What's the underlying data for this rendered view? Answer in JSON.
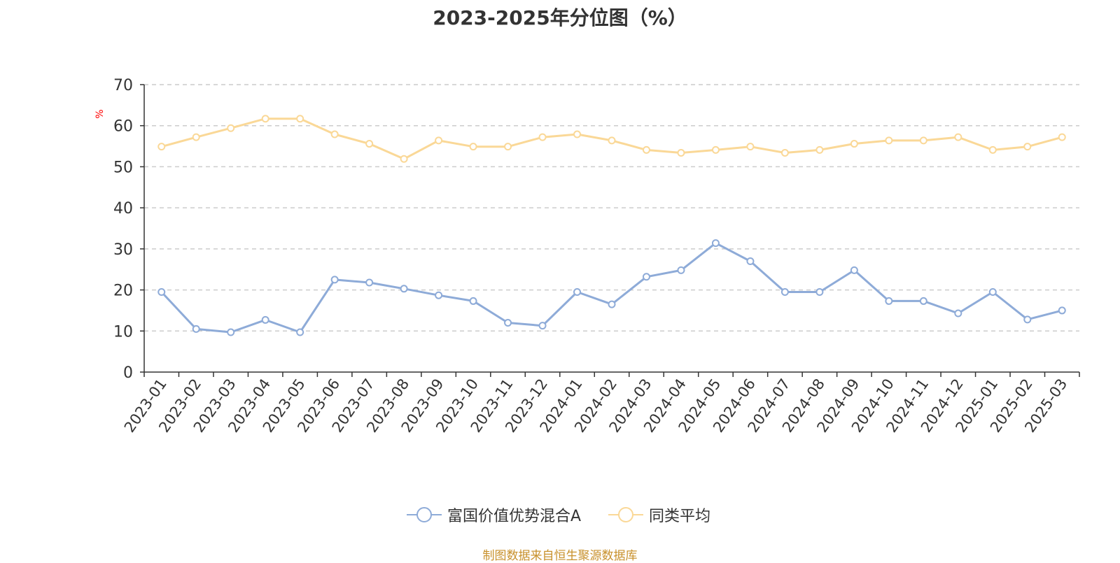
{
  "title": "2023-2025年分位图（%）",
  "source": "制图数据来自恒生聚源数据库",
  "chart_data": {
    "type": "line",
    "ylabel": "%",
    "ylim": [
      0,
      70
    ],
    "yticks": [
      0,
      10,
      20,
      30,
      40,
      50,
      60,
      70
    ],
    "grid": true,
    "legend_position": "bottom",
    "categories": [
      "2023-01",
      "2023-02",
      "2023-03",
      "2023-04",
      "2023-05",
      "2023-06",
      "2023-07",
      "2023-08",
      "2023-09",
      "2023-10",
      "2023-11",
      "2023-12",
      "2024-01",
      "2024-02",
      "2024-03",
      "2024-04",
      "2024-05",
      "2024-06",
      "2024-07",
      "2024-08",
      "2024-09",
      "2024-10",
      "2024-11",
      "2024-12",
      "2025-01",
      "2025-02",
      "2025-03"
    ],
    "series": [
      {
        "name": "富国价值优势混合A",
        "color": "#8eabd8",
        "values": [
          19.5,
          10.5,
          9.7,
          12.7,
          9.7,
          22.5,
          21.8,
          20.3,
          18.7,
          17.3,
          12.0,
          11.3,
          19.5,
          16.5,
          23.2,
          24.8,
          31.4,
          27.0,
          19.5,
          19.5,
          24.8,
          17.3,
          17.3,
          14.3,
          19.5,
          12.8,
          15.0
        ]
      },
      {
        "name": "同类平均",
        "color": "#fad897",
        "values": [
          54.9,
          57.2,
          59.4,
          61.7,
          61.7,
          57.9,
          55.6,
          51.9,
          56.4,
          54.9,
          54.9,
          57.2,
          57.9,
          56.4,
          54.1,
          53.4,
          54.1,
          54.9,
          53.4,
          54.1,
          55.6,
          56.4,
          56.4,
          57.2,
          54.1,
          54.9,
          57.2
        ]
      }
    ]
  }
}
